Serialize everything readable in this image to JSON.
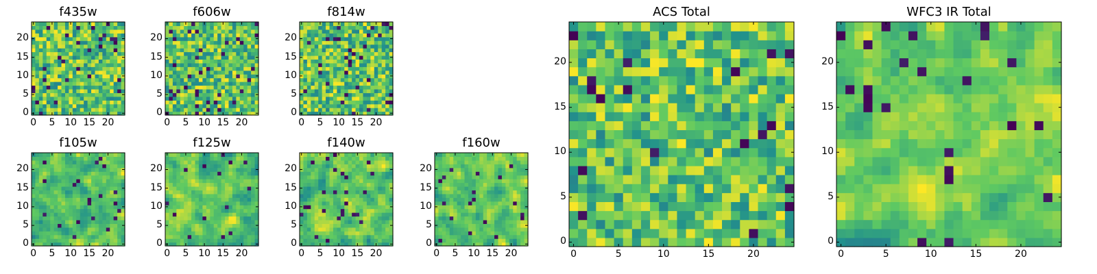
{
  "colormap": {
    "name": "viridis",
    "stops": [
      "#440154",
      "#3b528b",
      "#21918c",
      "#5ec962",
      "#fde725"
    ]
  },
  "chart_data": [
    {
      "id": "f435w",
      "type": "heatmap",
      "title": "f435w",
      "grid_size": 25,
      "seed": 11,
      "smooth": 0,
      "dark_frac": 0.05,
      "xticks": [
        "0",
        "5",
        "10",
        "15",
        "20"
      ],
      "yticks": [
        "0",
        "5",
        "10",
        "15",
        "20"
      ]
    },
    {
      "id": "f606w",
      "type": "heatmap",
      "title": "f606w",
      "grid_size": 25,
      "seed": 23,
      "smooth": 0,
      "dark_frac": 0.05,
      "xticks": [
        "0",
        "5",
        "10",
        "15",
        "20"
      ],
      "yticks": [
        "0",
        "5",
        "10",
        "15",
        "20"
      ]
    },
    {
      "id": "f814w",
      "type": "heatmap",
      "title": "f814w",
      "grid_size": 25,
      "seed": 37,
      "smooth": 0,
      "dark_frac": 0.05,
      "xticks": [
        "0",
        "5",
        "10",
        "15",
        "20"
      ],
      "yticks": [
        "0",
        "5",
        "10",
        "15",
        "20"
      ]
    },
    {
      "id": "f105w",
      "type": "heatmap",
      "title": "f105w",
      "grid_size": 25,
      "seed": 41,
      "smooth": 1,
      "dark_frac": 0.03,
      "xticks": [
        "0",
        "5",
        "10",
        "15",
        "20"
      ],
      "yticks": [
        "0",
        "5",
        "10",
        "15",
        "20"
      ]
    },
    {
      "id": "f125w",
      "type": "heatmap",
      "title": "f125w",
      "grid_size": 25,
      "seed": 53,
      "smooth": 1,
      "dark_frac": 0.03,
      "xticks": [
        "0",
        "5",
        "10",
        "15",
        "20"
      ],
      "yticks": [
        "0",
        "5",
        "10",
        "15",
        "20"
      ]
    },
    {
      "id": "f140w",
      "type": "heatmap",
      "title": "f140w",
      "grid_size": 25,
      "seed": 67,
      "smooth": 1,
      "dark_frac": 0.03,
      "xticks": [
        "0",
        "5",
        "10",
        "15",
        "20"
      ],
      "yticks": [
        "0",
        "5",
        "10",
        "15",
        "20"
      ]
    },
    {
      "id": "f160w",
      "type": "heatmap",
      "title": "f160w",
      "grid_size": 25,
      "seed": 79,
      "smooth": 1,
      "dark_frac": 0.04,
      "xticks": [
        "0",
        "5",
        "10",
        "15",
        "20"
      ],
      "yticks": [
        "0",
        "5",
        "10",
        "15",
        "20"
      ]
    },
    {
      "id": "acs-total",
      "type": "heatmap",
      "title": "ACS Total",
      "grid_size": 25,
      "seed": 89,
      "smooth": 0,
      "dark_frac": 0.03,
      "xticks": [
        "0",
        "5",
        "10",
        "15",
        "20"
      ],
      "yticks": [
        "0",
        "5",
        "10",
        "15",
        "20"
      ]
    },
    {
      "id": "wfc3-ir-total",
      "type": "heatmap",
      "title": "WFC3 IR Total",
      "grid_size": 25,
      "seed": 97,
      "smooth": 1,
      "dark_frac": 0.04,
      "xticks": [
        "0",
        "5",
        "10",
        "15",
        "20"
      ],
      "yticks": [
        "0",
        "5",
        "10",
        "15",
        "20"
      ]
    }
  ]
}
